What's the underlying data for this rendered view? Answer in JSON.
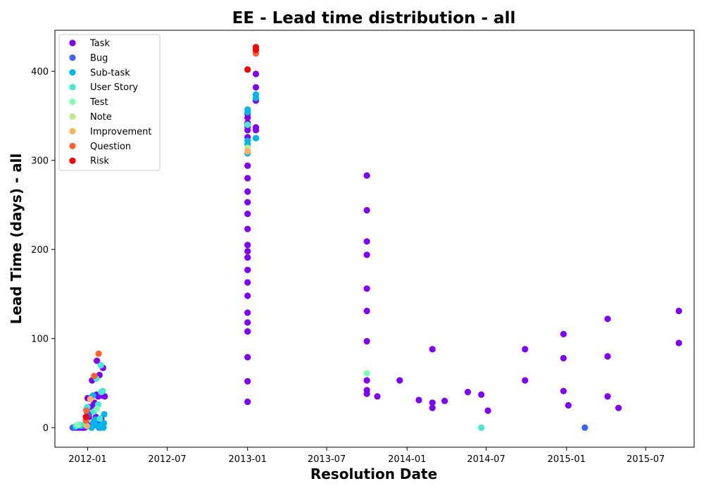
{
  "chart_data": {
    "type": "scatter",
    "title": "EE - Lead time distribution - all",
    "xlabel": "Resolution Date",
    "ylabel": "Lead Time (days) - all",
    "x_ticks": [
      "2012-01",
      "2012-07",
      "2013-01",
      "2013-07",
      "2014-01",
      "2014-07",
      "2015-01",
      "2015-07"
    ],
    "y_ticks": [
      0,
      100,
      200,
      300,
      400
    ],
    "xlim": [
      "2011-10-18",
      "2015-10-20"
    ],
    "ylim": [
      -22,
      446
    ],
    "grid": false,
    "legend_position": "top-left",
    "series": [
      {
        "name": "Task",
        "color": "#8000ff",
        "points": [
          [
            "2011-11-28",
            0
          ],
          [
            "2011-12-03",
            0
          ],
          [
            "2011-12-08",
            0
          ],
          [
            "2011-12-15",
            0
          ],
          [
            "2011-12-20",
            0
          ],
          [
            "2011-12-25",
            0
          ],
          [
            "2011-12-28",
            1
          ],
          [
            "2011-12-29",
            5
          ],
          [
            "2012-01-02",
            2
          ],
          [
            "2012-01-04",
            12
          ],
          [
            "2011-12-30",
            18
          ],
          [
            "2011-12-31",
            22
          ],
          [
            "2012-01-03",
            23
          ],
          [
            "2012-01-01",
            33
          ],
          [
            "2012-01-12",
            3
          ],
          [
            "2012-01-13",
            22
          ],
          [
            "2012-01-15",
            26
          ],
          [
            "2012-01-16",
            28
          ],
          [
            "2012-01-18",
            3
          ],
          [
            "2012-01-20",
            12
          ],
          [
            "2012-01-21",
            37
          ],
          [
            "2012-01-23",
            5
          ],
          [
            "2012-01-25",
            35
          ],
          [
            "2012-01-26",
            2
          ],
          [
            "2012-01-28",
            59
          ],
          [
            "2012-02-01",
            10
          ],
          [
            "2012-02-03",
            36
          ],
          [
            "2012-02-05",
            67
          ],
          [
            "2012-02-09",
            35
          ],
          [
            "2012-01-22",
            75
          ],
          [
            "2012-01-11",
            53
          ],
          [
            "2013-01-01",
            29
          ],
          [
            "2013-01-01",
            52
          ],
          [
            "2013-01-01",
            79
          ],
          [
            "2013-01-01",
            108
          ],
          [
            "2013-01-01",
            118
          ],
          [
            "2013-01-01",
            129
          ],
          [
            "2013-01-01",
            148
          ],
          [
            "2013-01-01",
            163
          ],
          [
            "2013-01-01",
            177
          ],
          [
            "2013-01-01",
            191
          ],
          [
            "2013-01-01",
            198
          ],
          [
            "2013-01-01",
            205
          ],
          [
            "2013-01-01",
            223
          ],
          [
            "2013-01-01",
            240
          ],
          [
            "2013-01-01",
            253
          ],
          [
            "2013-01-01",
            265
          ],
          [
            "2013-01-01",
            280
          ],
          [
            "2013-01-01",
            294
          ],
          [
            "2013-01-01",
            326
          ],
          [
            "2013-01-01",
            334
          ],
          [
            "2013-01-01",
            338
          ],
          [
            "2013-01-01",
            342
          ],
          [
            "2013-01-01",
            348
          ],
          [
            "2013-01-01",
            352
          ],
          [
            "2013-01-20",
            334
          ],
          [
            "2013-01-20",
            337
          ],
          [
            "2013-01-20",
            367
          ],
          [
            "2013-01-20",
            382
          ],
          [
            "2013-01-20",
            397
          ],
          [
            "2013-10-01",
            38
          ],
          [
            "2013-10-01",
            42
          ],
          [
            "2013-10-01",
            53
          ],
          [
            "2013-10-01",
            97
          ],
          [
            "2013-10-01",
            131
          ],
          [
            "2013-10-01",
            156
          ],
          [
            "2013-10-01",
            194
          ],
          [
            "2013-10-01",
            209
          ],
          [
            "2013-10-01",
            244
          ],
          [
            "2013-10-01",
            283
          ],
          [
            "2013-10-25",
            35
          ],
          [
            "2013-12-15",
            53
          ],
          [
            "2014-01-28",
            31
          ],
          [
            "2014-02-28",
            22
          ],
          [
            "2014-02-28",
            28
          ],
          [
            "2014-02-28",
            88
          ],
          [
            "2014-03-28",
            30
          ],
          [
            "2014-05-20",
            40
          ],
          [
            "2014-06-20",
            37
          ],
          [
            "2014-07-05",
            19
          ],
          [
            "2014-09-28",
            88
          ],
          [
            "2014-09-28",
            53
          ],
          [
            "2014-12-25",
            105
          ],
          [
            "2014-12-25",
            78
          ],
          [
            "2014-12-25",
            41
          ],
          [
            "2015-01-05",
            25
          ],
          [
            "2015-04-05",
            122
          ],
          [
            "2015-04-05",
            80
          ],
          [
            "2015-04-05",
            35
          ],
          [
            "2015-04-30",
            22
          ],
          [
            "2015-09-15",
            131
          ],
          [
            "2015-09-15",
            95
          ]
        ]
      },
      {
        "name": "Bug",
        "color": "#4062fa",
        "points": [
          [
            "2011-11-29",
            0
          ],
          [
            "2011-12-05",
            1
          ],
          [
            "2011-12-22",
            2
          ],
          [
            "2012-01-04",
            15
          ],
          [
            "2012-01-17",
            8
          ],
          [
            "2012-01-27",
            0
          ],
          [
            "2015-02-12",
            0
          ]
        ]
      },
      {
        "name": "Sub-task",
        "color": "#00b5eb",
        "points": [
          [
            "2011-12-04",
            1
          ],
          [
            "2011-12-16",
            2
          ],
          [
            "2011-12-27",
            4
          ],
          [
            "2012-01-10",
            0
          ],
          [
            "2012-01-14",
            6
          ],
          [
            "2012-01-19",
            9
          ],
          [
            "2012-01-24",
            2
          ],
          [
            "2012-01-30",
            0
          ],
          [
            "2012-02-02",
            3
          ],
          [
            "2012-02-06",
            0
          ],
          [
            "2012-02-07",
            5
          ],
          [
            "2012-02-08",
            15
          ],
          [
            "2012-01-13",
            36
          ],
          [
            "2013-01-01",
            308
          ],
          [
            "2013-01-01",
            318
          ],
          [
            "2013-01-01",
            322
          ],
          [
            "2013-01-01",
            354
          ],
          [
            "2013-01-01",
            357
          ],
          [
            "2013-01-20",
            325
          ],
          [
            "2013-01-20",
            370
          ],
          [
            "2013-01-20",
            374
          ]
        ]
      },
      {
        "name": "User Story",
        "color": "#40ecd4",
        "points": [
          [
            "2011-12-06",
            2
          ],
          [
            "2011-12-14",
            3
          ],
          [
            "2011-12-26",
            4
          ],
          [
            "2011-12-28",
            20
          ],
          [
            "2011-12-31",
            23
          ],
          [
            "2012-01-15",
            18
          ],
          [
            "2012-01-21",
            55
          ],
          [
            "2012-01-25",
            26
          ],
          [
            "2012-01-29",
            10
          ],
          [
            "2012-01-31",
            70
          ],
          [
            "2012-02-01",
            40
          ],
          [
            "2012-02-04",
            41
          ],
          [
            "2013-01-01",
            340
          ],
          [
            "2014-06-20",
            0
          ]
        ]
      },
      {
        "name": "Test",
        "color": "#80ffb4",
        "points": [
          [
            "2011-12-09",
            3
          ],
          [
            "2012-01-22",
            21
          ],
          [
            "2013-10-01",
            61
          ]
        ]
      },
      {
        "name": "Note",
        "color": "#c0eb8d",
        "points": [
          [
            "2013-01-01",
            314
          ]
        ]
      },
      {
        "name": "Improvement",
        "color": "#ffb360",
        "points": [
          [
            "2011-12-30",
            2
          ],
          [
            "2012-01-07",
            32
          ],
          [
            "2013-01-01",
            310
          ]
        ]
      },
      {
        "name": "Question",
        "color": "#ff6230",
        "points": [
          [
            "2011-12-28",
            8
          ],
          [
            "2011-12-29",
            19
          ],
          [
            "2012-01-16",
            58
          ],
          [
            "2012-01-26",
            83
          ],
          [
            "2013-01-20",
            420
          ]
        ]
      },
      {
        "name": "Risk",
        "color": "#ff0000",
        "points": [
          [
            "2011-12-28",
            12
          ],
          [
            "2013-01-01",
            402
          ],
          [
            "2013-01-20",
            424
          ],
          [
            "2013-01-20",
            427
          ]
        ]
      }
    ]
  }
}
